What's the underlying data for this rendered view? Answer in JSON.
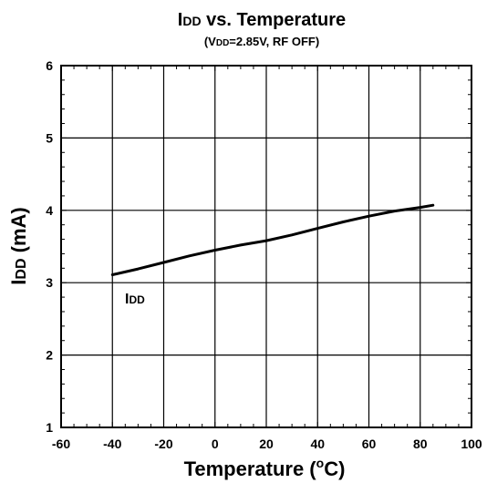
{
  "chart_data": {
    "type": "line",
    "title_main": "I",
    "title_main_sub": "DD",
    "title_rest": " vs. Temperature",
    "subtitle_pre": "(V",
    "subtitle_sub": "DD",
    "subtitle_post": "=2.85V, RF OFF)",
    "xlabel_text": "Temperature (",
    "xlabel_sup": "o",
    "xlabel_end": "C)",
    "ylabel_main": "I",
    "ylabel_sub": "DD",
    "ylabel_rest": " (mA)",
    "xlim": [
      -60,
      100
    ],
    "ylim": [
      1,
      6
    ],
    "xticks": [
      -60,
      -40,
      -20,
      0,
      20,
      40,
      60,
      80,
      100
    ],
    "yticks": [
      1,
      2,
      3,
      4,
      5,
      6
    ],
    "x_minor_step": 5,
    "y_minor_step": 0.2,
    "grid": true,
    "series": [
      {
        "label_main": "I",
        "label_sub": "DD",
        "color": "#000000",
        "x": [
          -40,
          -30,
          -20,
          -10,
          0,
          10,
          20,
          30,
          40,
          50,
          60,
          70,
          80,
          85
        ],
        "y": [
          3.11,
          3.19,
          3.28,
          3.37,
          3.45,
          3.52,
          3.58,
          3.66,
          3.75,
          3.84,
          3.92,
          3.99,
          4.04,
          4.07
        ]
      }
    ]
  }
}
